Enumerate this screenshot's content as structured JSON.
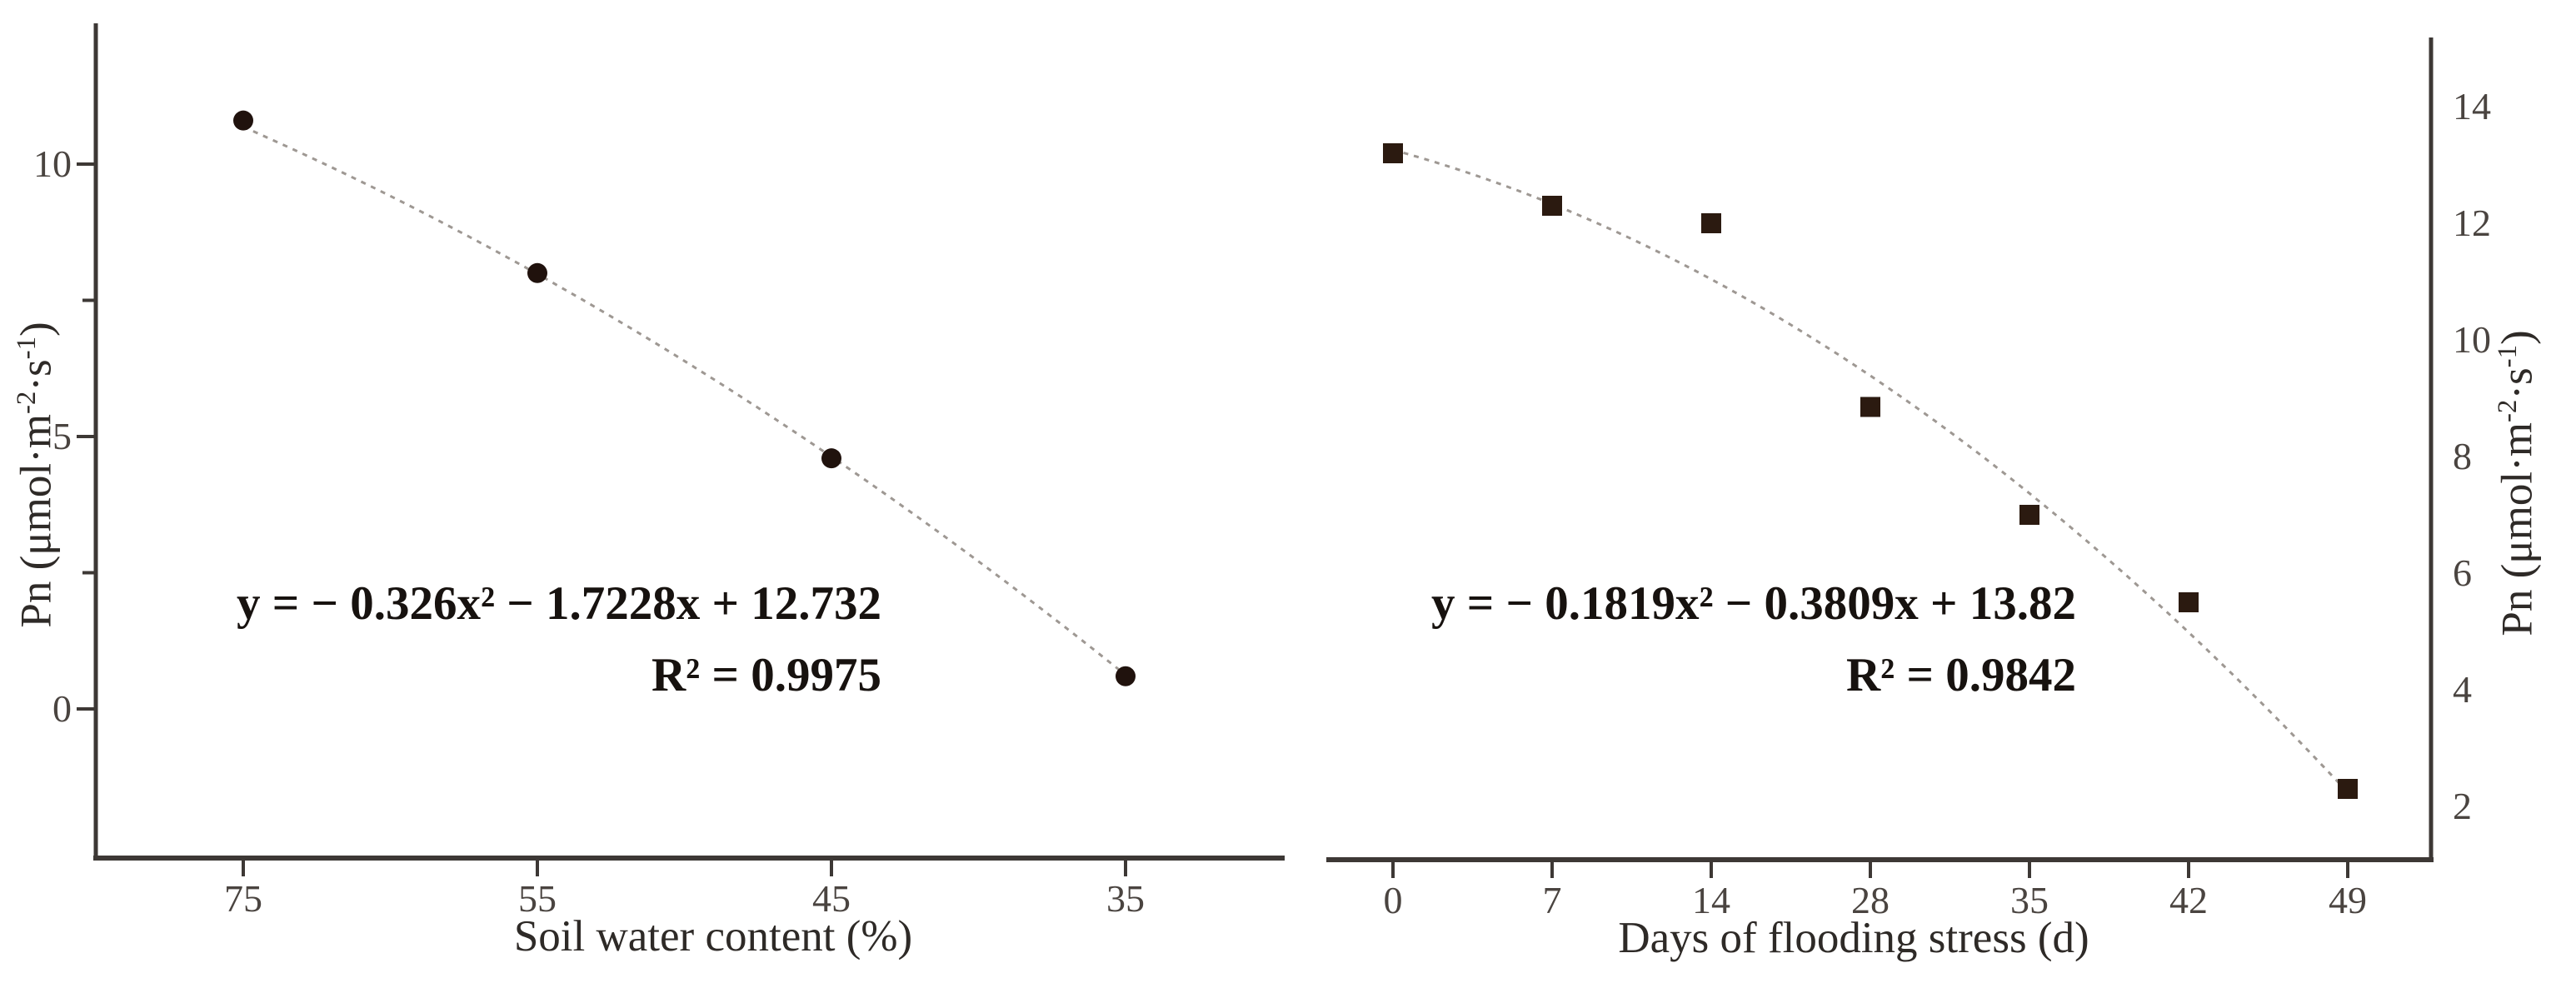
{
  "colors": {
    "background": "#ffffff",
    "axis": "#3d3835",
    "tick_label": "#4a4440",
    "curve": "#9e9893",
    "equation_text": "#17120f"
  },
  "chart_data": [
    {
      "type": "scatter",
      "panel": "left",
      "marker": "circle",
      "marker_color": "#20120d",
      "xlabel": "Soil water content (%)",
      "ylabel": "Pn (μmol·m⁻²·s⁻¹)",
      "ylabel_parts": [
        {
          "t": "Pn (μmol·m"
        },
        {
          "t": "-2",
          "sup": true
        },
        {
          "t": "·s"
        },
        {
          "t": "-1",
          "sup": true
        },
        {
          "t": ")"
        }
      ],
      "x_tick_labels": [
        "75",
        "55",
        "45",
        "35"
      ],
      "x_values": [
        75,
        55,
        45,
        35
      ],
      "point_values": [
        10.8,
        8.0,
        4.6,
        0.6
      ],
      "y_ticks": {
        "labels": [
          "10",
          "5",
          "0"
        ],
        "values": [
          10,
          5,
          0
        ],
        "minor_values": [
          7.5,
          2.5
        ]
      },
      "ylim": [
        -2.7,
        12.6
      ],
      "grid": false,
      "legend": null,
      "fit": {
        "type": "quadratic",
        "a": -0.326,
        "b": -1.7228,
        "c": 12.732,
        "r2": 0.9975,
        "x_is_category_index": true
      },
      "equation_text": "y = − 0.326x² − 1.7228x + 12.732",
      "r2_text": "R² = 0.9975"
    },
    {
      "type": "scatter",
      "panel": "right",
      "marker": "square",
      "marker_color": "#2b1a10",
      "xlabel": "Days of flooding stress (d)",
      "ylabel": "Pn (μmol·m⁻²·s⁻¹)",
      "ylabel_parts": [
        {
          "t": "Pn (μmol·m"
        },
        {
          "t": "-2",
          "sup": true
        },
        {
          "t": "·s"
        },
        {
          "t": "-1",
          "sup": true
        },
        {
          "t": ")"
        }
      ],
      "x_tick_labels": [
        "0",
        "7",
        "14",
        "28",
        "35",
        "42",
        "49"
      ],
      "x_values": [
        0,
        7,
        14,
        28,
        35,
        42,
        49
      ],
      "point_values": [
        13.2,
        12.3,
        12.0,
        8.85,
        7.0,
        5.5,
        2.3
      ],
      "y_ticks": {
        "labels": [
          "14",
          "12",
          "10",
          "8",
          "6",
          "4",
          "2"
        ],
        "values": [
          14,
          12,
          10,
          8,
          6,
          4,
          2
        ],
        "minor_values": []
      },
      "ylim": [
        0.9,
        15.2
      ],
      "grid": false,
      "legend": null,
      "fit": {
        "type": "quadratic",
        "a": -0.1819,
        "b": -0.3809,
        "c": 13.82,
        "r2": 0.9842,
        "x_is_category_index": true
      },
      "equation_text": "y = − 0.1819x² − 0.3809x + 13.82",
      "r2_text": "R² = 0.9842"
    }
  ]
}
